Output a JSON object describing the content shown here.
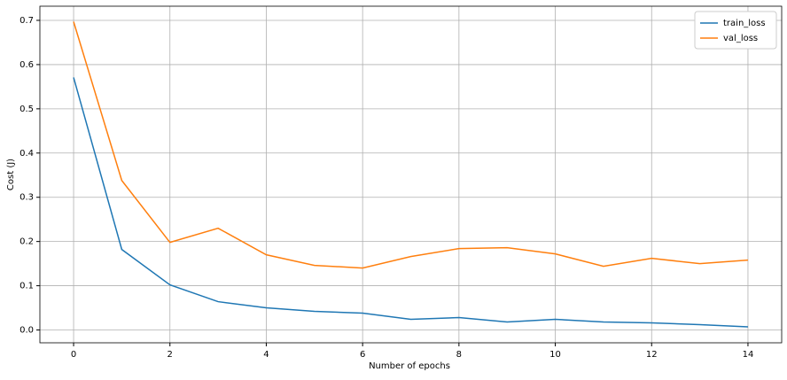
{
  "chart_data": {
    "type": "line",
    "x_label": "Number of epochs",
    "y_label": "Cost (J)",
    "x": [
      0,
      1,
      2,
      3,
      4,
      5,
      6,
      7,
      8,
      9,
      10,
      11,
      12,
      13,
      14
    ],
    "series": [
      {
        "name": "train_loss",
        "color": "#1f77b4",
        "values": [
          0.571,
          0.182,
          0.102,
          0.064,
          0.05,
          0.042,
          0.038,
          0.024,
          0.028,
          0.018,
          0.024,
          0.018,
          0.016,
          0.012,
          0.007
        ]
      },
      {
        "name": "val_loss",
        "color": "#ff7f0e",
        "values": [
          0.697,
          0.338,
          0.198,
          0.23,
          0.17,
          0.146,
          0.14,
          0.166,
          0.184,
          0.186,
          0.172,
          0.144,
          0.162,
          0.15,
          0.158
        ]
      }
    ],
    "xlim": [
      -0.7,
      14.7
    ],
    "xticks": [
      0,
      2,
      4,
      6,
      8,
      10,
      12,
      14
    ],
    "ylim": [
      -0.029,
      0.732
    ],
    "yticks": [
      {
        "value": 0,
        "label": "0.0"
      },
      0.1,
      0.2,
      0.3,
      0.4,
      0.5,
      0.6,
      0.7
    ],
    "grid": true,
    "legend": "upper-right"
  }
}
